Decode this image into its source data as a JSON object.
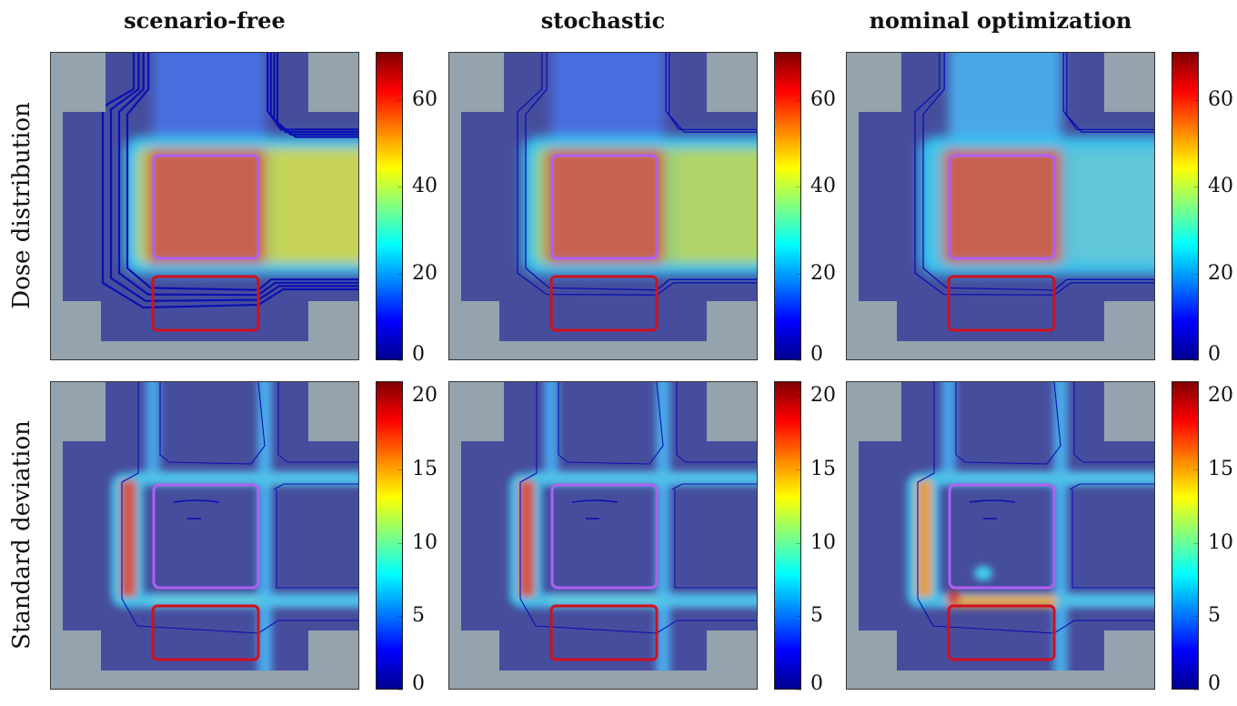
{
  "chart_data": {
    "type": "heatmap",
    "columns": [
      "scenario-free",
      "stochastic",
      "nominal optimization"
    ],
    "rows": [
      {
        "label": "Dose distribution",
        "colorbar": {
          "min": 0,
          "max": 71,
          "ticks": [
            0,
            20,
            40,
            60
          ]
        }
      },
      {
        "label": "Standard deviation",
        "colorbar": {
          "min": 0,
          "max": 21,
          "ticks": [
            0,
            5,
            10,
            15,
            20
          ]
        }
      }
    ],
    "colormap": "jet",
    "contour_color": "#0a10b0",
    "target_outline_color": "#b060f0",
    "organ_at_risk_outline_color": "#d01020",
    "background_color": "#94a3ad",
    "body_color": "#474d9d"
  }
}
